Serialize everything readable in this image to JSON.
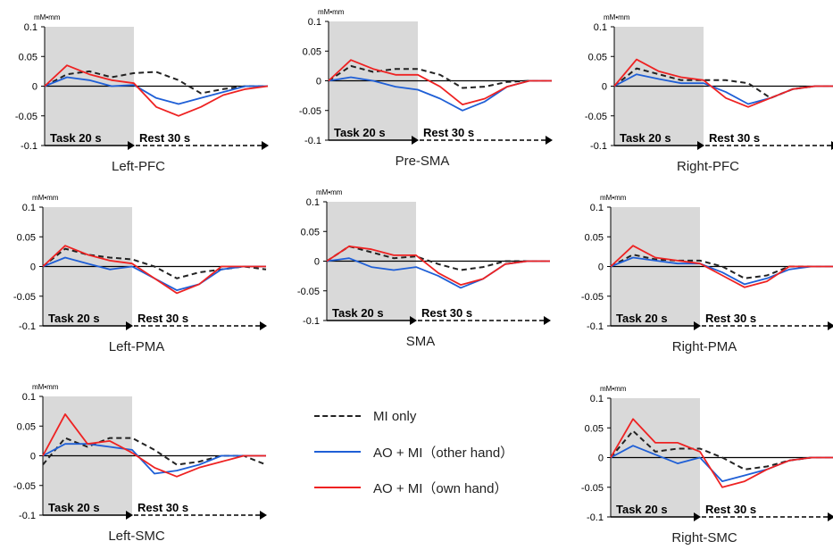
{
  "figure": {
    "unit_label": "mM•mm",
    "task_label": "Task 20 s",
    "rest_label": "Rest 30 s"
  },
  "legend": {
    "items": [
      {
        "label": "MI only",
        "color": "#222222",
        "style": "dashed"
      },
      {
        "label": "AO + MI（other hand）",
        "color": "#1f5fd6",
        "style": "solid"
      },
      {
        "label": "AO + MI（own hand）",
        "color": "#ee2222",
        "style": "solid"
      }
    ]
  },
  "chart_data": [
    {
      "type": "line",
      "title": "Left-PFC",
      "ylabel": "mM•mm",
      "ylim": [
        -0.1,
        0.1
      ],
      "yticks": [
        "0.1",
        "0.05",
        "0",
        "-0.05",
        "-0.1"
      ],
      "xlim": [
        0,
        50
      ],
      "task_interval": [
        0,
        20
      ],
      "x": [
        0,
        5,
        10,
        15,
        20,
        25,
        30,
        35,
        40,
        45,
        50
      ],
      "series": [
        {
          "name": "MI only",
          "values": [
            0.0,
            0.02,
            0.025,
            0.015,
            0.022,
            0.024,
            0.01,
            -0.012,
            -0.005,
            0.0,
            0.0
          ]
        },
        {
          "name": "AO + MI（other hand）",
          "values": [
            0.0,
            0.015,
            0.01,
            0.0,
            0.002,
            -0.02,
            -0.03,
            -0.02,
            -0.01,
            0.0,
            0.0
          ]
        },
        {
          "name": "AO + MI（own hand）",
          "values": [
            0.0,
            0.035,
            0.02,
            0.01,
            0.005,
            -0.035,
            -0.05,
            -0.035,
            -0.015,
            -0.005,
            0.0
          ]
        }
      ]
    },
    {
      "type": "line",
      "title": "Pre-SMA",
      "ylabel": "mM•mm",
      "ylim": [
        -0.1,
        0.1
      ],
      "yticks": [
        "0.1",
        "0.05",
        "0",
        "-0.05",
        "-0.1"
      ],
      "xlim": [
        0,
        50
      ],
      "task_interval": [
        0,
        20
      ],
      "x": [
        0,
        5,
        10,
        15,
        20,
        25,
        30,
        35,
        40,
        45,
        50
      ],
      "series": [
        {
          "name": "MI only",
          "values": [
            0.0,
            0.025,
            0.015,
            0.02,
            0.02,
            0.01,
            -0.012,
            -0.01,
            -0.002,
            0.0,
            0.0
          ]
        },
        {
          "name": "AO + MI（other hand）",
          "values": [
            0.0,
            0.006,
            0.0,
            -0.01,
            -0.015,
            -0.03,
            -0.05,
            -0.035,
            -0.01,
            0.0,
            0.0
          ]
        },
        {
          "name": "AO + MI（own hand）",
          "values": [
            0.0,
            0.035,
            0.02,
            0.01,
            0.01,
            -0.01,
            -0.04,
            -0.03,
            -0.01,
            0.0,
            0.0
          ]
        }
      ]
    },
    {
      "type": "line",
      "title": "Right-PFC",
      "ylabel": "mM•mm",
      "ylim": [
        -0.1,
        0.1
      ],
      "yticks": [
        "0.1",
        "0.05",
        "0",
        "-0.05",
        "-0.1"
      ],
      "xlim": [
        0,
        50
      ],
      "task_interval": [
        0,
        20
      ],
      "x": [
        0,
        5,
        10,
        15,
        20,
        25,
        30,
        35,
        40,
        45,
        50
      ],
      "series": [
        {
          "name": "MI only",
          "values": [
            0.0,
            0.03,
            0.02,
            0.01,
            0.01,
            0.01,
            0.005,
            -0.02,
            -0.005,
            0.0,
            0.0
          ]
        },
        {
          "name": "AO + MI（other hand）",
          "values": [
            0.0,
            0.02,
            0.012,
            0.005,
            0.005,
            -0.01,
            -0.03,
            -0.02,
            -0.005,
            0.0,
            0.0
          ]
        },
        {
          "name": "AO + MI（own hand）",
          "values": [
            0.0,
            0.045,
            0.025,
            0.015,
            0.01,
            -0.02,
            -0.035,
            -0.02,
            -0.005,
            0.0,
            0.0
          ]
        }
      ]
    },
    {
      "type": "line",
      "title": "Left-PMA",
      "ylabel": "mM•mm",
      "ylim": [
        -0.1,
        0.1
      ],
      "yticks": [
        "0.1",
        "0.05",
        "0",
        "-0.05",
        "-0.1"
      ],
      "xlim": [
        0,
        50
      ],
      "task_interval": [
        0,
        20
      ],
      "x": [
        0,
        5,
        10,
        15,
        20,
        25,
        30,
        35,
        40,
        45,
        50
      ],
      "series": [
        {
          "name": "MI only",
          "values": [
            0.0,
            0.03,
            0.02,
            0.015,
            0.012,
            0.0,
            -0.02,
            -0.01,
            -0.005,
            0.0,
            -0.005
          ]
        },
        {
          "name": "AO + MI（other hand）",
          "values": [
            0.0,
            0.015,
            0.005,
            -0.005,
            0.0,
            -0.02,
            -0.04,
            -0.03,
            -0.005,
            0.0,
            0.0
          ]
        },
        {
          "name": "AO + MI（own hand）",
          "values": [
            0.0,
            0.035,
            0.02,
            0.01,
            0.005,
            -0.02,
            -0.045,
            -0.03,
            0.0,
            0.0,
            0.0
          ]
        }
      ]
    },
    {
      "type": "line",
      "title": "SMA",
      "ylabel": "mM•mm",
      "ylim": [
        -0.1,
        0.1
      ],
      "yticks": [
        "0.1",
        "0.05",
        "0",
        "-0.05",
        "-0.1"
      ],
      "xlim": [
        0,
        50
      ],
      "task_interval": [
        0,
        20
      ],
      "x": [
        0,
        5,
        10,
        15,
        20,
        25,
        30,
        35,
        40,
        45,
        50
      ],
      "series": [
        {
          "name": "MI only",
          "values": [
            0.0,
            0.025,
            0.015,
            0.005,
            0.008,
            -0.005,
            -0.015,
            -0.01,
            0.0,
            0.0,
            0.0
          ]
        },
        {
          "name": "AO + MI（other hand）",
          "values": [
            0.0,
            0.005,
            -0.01,
            -0.015,
            -0.01,
            -0.025,
            -0.045,
            -0.03,
            -0.005,
            0.0,
            0.0
          ]
        },
        {
          "name": "AO + MI（own hand）",
          "values": [
            0.0,
            0.025,
            0.02,
            0.01,
            0.01,
            -0.02,
            -0.04,
            -0.03,
            -0.005,
            0.0,
            0.0
          ]
        }
      ]
    },
    {
      "type": "line",
      "title": "Right-PMA",
      "ylabel": "mM•mm",
      "ylim": [
        -0.1,
        0.1
      ],
      "yticks": [
        "0.1",
        "0.05",
        "0",
        "-0.05",
        "-0.1"
      ],
      "xlim": [
        0,
        50
      ],
      "task_interval": [
        0,
        20
      ],
      "x": [
        0,
        5,
        10,
        15,
        20,
        25,
        30,
        35,
        40,
        45,
        50
      ],
      "series": [
        {
          "name": "MI only",
          "values": [
            0.0,
            0.02,
            0.012,
            0.01,
            0.01,
            0.0,
            -0.02,
            -0.015,
            0.0,
            0.0,
            0.0
          ]
        },
        {
          "name": "AO + MI（other hand）",
          "values": [
            0.0,
            0.015,
            0.01,
            0.005,
            0.005,
            -0.01,
            -0.03,
            -0.02,
            -0.005,
            0.0,
            0.0
          ]
        },
        {
          "name": "AO + MI（own hand）",
          "values": [
            0.0,
            0.035,
            0.015,
            0.01,
            0.005,
            -0.015,
            -0.035,
            -0.025,
            0.0,
            0.0,
            0.0
          ]
        }
      ]
    },
    {
      "type": "line",
      "title": "Left-SMC",
      "ylabel": "mM•mm",
      "ylim": [
        -0.1,
        0.1
      ],
      "yticks": [
        "0.1",
        "0.05",
        "0",
        "-0.05",
        "-0.1"
      ],
      "xlim": [
        0,
        50
      ],
      "task_interval": [
        0,
        20
      ],
      "x": [
        0,
        5,
        10,
        15,
        20,
        25,
        30,
        35,
        40,
        45,
        50
      ],
      "series": [
        {
          "name": "MI only",
          "values": [
            -0.015,
            0.03,
            0.015,
            0.03,
            0.03,
            0.01,
            -0.015,
            -0.01,
            0.0,
            0.0,
            -0.015
          ]
        },
        {
          "name": "AO + MI（other hand）",
          "values": [
            0.0,
            0.02,
            0.02,
            0.015,
            0.01,
            -0.03,
            -0.025,
            -0.015,
            0.0,
            0.0,
            0.0
          ]
        },
        {
          "name": "AO + MI（own hand）",
          "values": [
            0.0,
            0.07,
            0.02,
            0.025,
            0.005,
            -0.02,
            -0.035,
            -0.02,
            -0.01,
            0.0,
            0.0
          ]
        }
      ]
    },
    {
      "type": "line",
      "title": "Right-SMC",
      "ylabel": "mM•mm",
      "ylim": [
        -0.1,
        0.1
      ],
      "yticks": [
        "0.1",
        "0.05",
        "0",
        "-0.05",
        "-0.1"
      ],
      "xlim": [
        0,
        50
      ],
      "task_interval": [
        0,
        20
      ],
      "x": [
        0,
        5,
        10,
        15,
        20,
        25,
        30,
        35,
        40,
        45,
        50
      ],
      "series": [
        {
          "name": "MI only",
          "values": [
            0.0,
            0.045,
            0.01,
            0.015,
            0.015,
            0.0,
            -0.02,
            -0.015,
            -0.005,
            0.0,
            0.0
          ]
        },
        {
          "name": "AO + MI（other hand）",
          "values": [
            0.0,
            0.02,
            0.005,
            -0.01,
            0.0,
            -0.04,
            -0.03,
            -0.02,
            -0.005,
            0.0,
            0.0
          ]
        },
        {
          "name": "AO + MI（own hand）",
          "values": [
            0.0,
            0.065,
            0.025,
            0.025,
            0.01,
            -0.05,
            -0.04,
            -0.02,
            -0.005,
            0.0,
            0.0
          ]
        }
      ]
    }
  ]
}
